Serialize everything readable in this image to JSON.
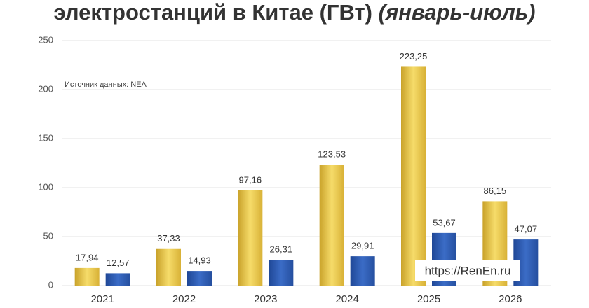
{
  "chart_data": {
    "type": "bar",
    "title": "электростанций в Китае (ГВт)",
    "title_note": "(январь-июль)",
    "annotations": [
      "Источник данных: NEA",
      "https://RenEn.ru"
    ],
    "categories": [
      "2021",
      "2022",
      "2023",
      "2024",
      "2025",
      "2026"
    ],
    "series": [
      {
        "color": "#e9c440",
        "values": [
          17.94,
          37.33,
          97.16,
          123.53,
          223.25,
          86.15
        ],
        "value_labels": [
          "17,94",
          "37,33",
          "97,16",
          "123,53",
          "223,25",
          "86,15"
        ]
      },
      {
        "color": "#2f5cb3",
        "values": [
          12.57,
          14.93,
          26.31,
          29.91,
          53.67,
          47.07
        ],
        "value_labels": [
          "12,57",
          "14,93",
          "26,31",
          "29,91",
          "53,67",
          "47,07"
        ]
      }
    ],
    "ylim": [
      0,
      250
    ],
    "yticks": [
      0,
      50,
      100,
      150,
      200,
      250
    ],
    "grid": true
  }
}
